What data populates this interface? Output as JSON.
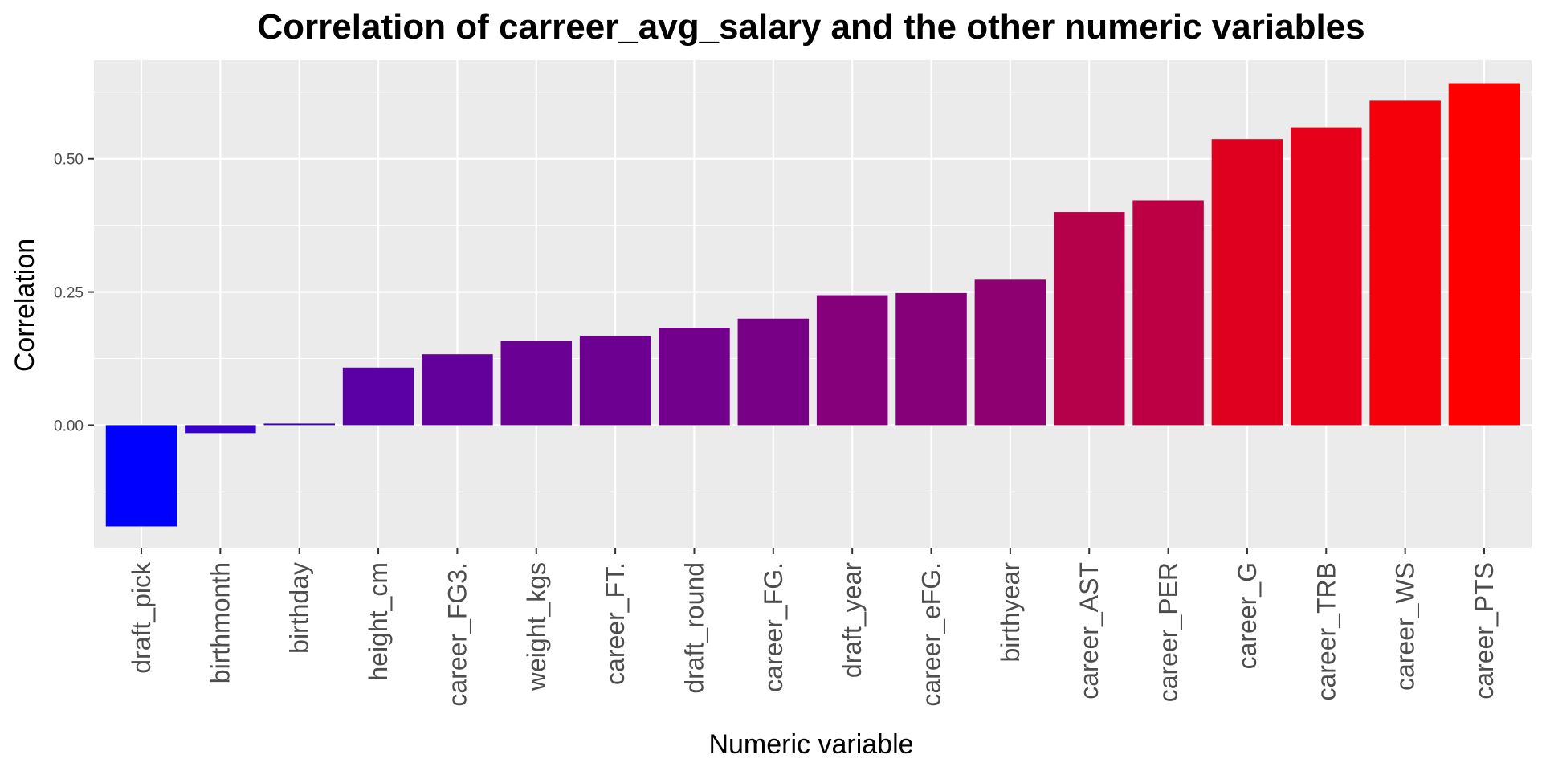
{
  "chart_data": {
    "type": "bar",
    "title": "Correlation of carreer_avg_salary and the other numeric variables",
    "xlabel": "Numeric variable",
    "ylabel": "Correlation",
    "categories": [
      "draft_pick",
      "birthmonth",
      "birthday",
      "height_cm",
      "career_FG3.",
      "weight_kgs",
      "career_FT.",
      "draft_round",
      "career_FG.",
      "draft_year",
      "career_eFG.",
      "birthyear",
      "career_AST",
      "career_PER",
      "career_G",
      "career_TRB",
      "career_WS",
      "career_PTS"
    ],
    "values": [
      -0.19,
      -0.015,
      0.003,
      0.108,
      0.133,
      0.158,
      0.168,
      0.183,
      0.2,
      0.244,
      0.248,
      0.273,
      0.4,
      0.422,
      0.537,
      0.559,
      0.609,
      0.642
    ],
    "ylim": [
      -0.23,
      0.685
    ],
    "yticks": [
      0,
      0.25,
      0.5
    ],
    "ytick_labels": [
      "0.00",
      "0.25",
      "0.50"
    ],
    "grid": true,
    "legend": "none",
    "color_low": "#0000FF",
    "color_high": "#FF0000",
    "panel_background": "#EBEBEB",
    "grid_color": "#FFFFFF"
  }
}
